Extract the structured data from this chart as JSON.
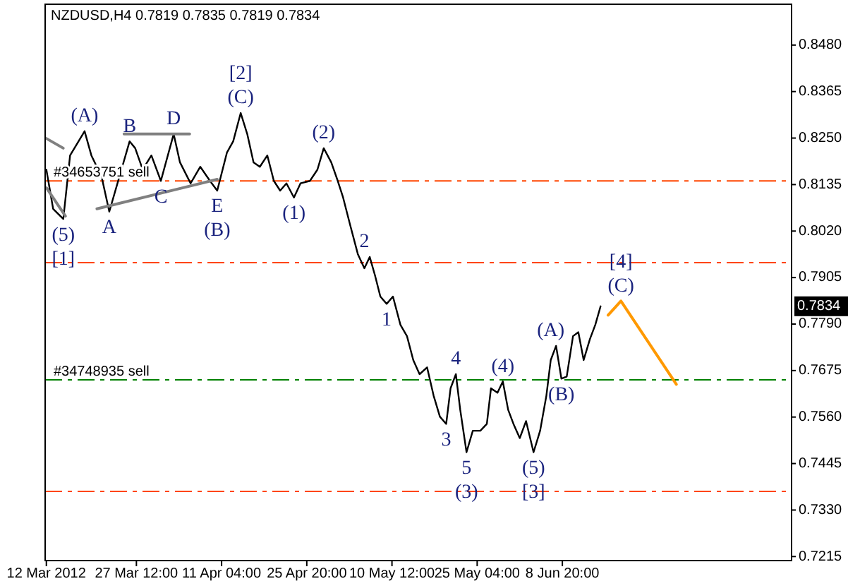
{
  "chart_data": {
    "type": "line",
    "title": "NZDUSD,H4  0.7819 0.7835 0.7819 0.7834",
    "xlim": [
      "2012-03-11T19:00",
      "2012-07-18T07:00"
    ],
    "ylim": [
      0.7205,
      0.8581
    ],
    "xticks": [
      {
        "value": "2012-03-12T00:00",
        "label": "12 Mar 2012"
      },
      {
        "value": "2012-03-27T12:00",
        "label": "27 Mar 12:00"
      },
      {
        "value": "2012-04-11T04:00",
        "label": "11 Apr 04:00"
      },
      {
        "value": "2012-04-25T20:00",
        "label": "25 Apr 20:00"
      },
      {
        "value": "2012-05-10T12:00",
        "label": "10 May 12:00"
      },
      {
        "value": "2012-05-25T04:00",
        "label": "25 May 04:00"
      },
      {
        "value": "2012-06-08T20:00",
        "label": "8 Jun 20:00"
      }
    ],
    "yticks": [
      {
        "value": 0.7215,
        "label": "0.7215"
      },
      {
        "value": 0.733,
        "label": "0.7330"
      },
      {
        "value": 0.7445,
        "label": "0.7445"
      },
      {
        "value": 0.756,
        "label": "0.7560"
      },
      {
        "value": 0.7675,
        "label": "0.7675"
      },
      {
        "value": 0.779,
        "label": "0.7790"
      },
      {
        "value": 0.7905,
        "label": "0.7905"
      },
      {
        "value": 0.802,
        "label": "0.8020"
      },
      {
        "value": 0.8135,
        "label": "0.8135"
      },
      {
        "value": 0.825,
        "label": "0.8250"
      },
      {
        "value": 0.8365,
        "label": "0.8365"
      },
      {
        "value": 0.848,
        "label": "0.8480"
      }
    ],
    "grid": false,
    "marker": "none",
    "series": [
      {
        "color": "#000000",
        "x": [
          "2012-03-12T00:00",
          "2012-03-13T04:00",
          "2012-03-14T22:00",
          "2012-03-16T02:00",
          "2012-03-18T14:00",
          "2012-03-19T18:00",
          "2012-03-21T12:00",
          "2012-03-22T20:00",
          "2012-03-24T14:00",
          "2012-03-26T08:00",
          "2012-03-27T07:00",
          "2012-03-28T14:00",
          "2012-03-30T02:00",
          "2012-03-31T17:00",
          "2012-04-02T22:00",
          "2012-04-04T00:00",
          "2012-04-05T20:00",
          "2012-04-07T12:00",
          "2012-04-09T04:00",
          "2012-04-10T10:00",
          "2012-04-12T02:00",
          "2012-04-13T04:00",
          "2012-04-14T11:00",
          "2012-04-15T14:00",
          "2012-04-16T16:00",
          "2012-04-17T18:00",
          "2012-04-19T01:00",
          "2012-04-20T04:00",
          "2012-04-21T06:00",
          "2012-04-22T08:00",
          "2012-04-23T15:00",
          "2012-04-24T18:00",
          "2012-04-26T09:00",
          "2012-04-27T16:00",
          "2012-04-28T18:00",
          "2012-04-30T01:00",
          "2012-05-01T04:00",
          "2012-05-02T02:00",
          "2012-05-03T08:00",
          "2012-05-04T15:00",
          "2012-05-05T18:00",
          "2012-05-06T16:00",
          "2012-05-07T14:00",
          "2012-05-08T12:00",
          "2012-05-09T14:00",
          "2012-05-10T16:00",
          "2012-05-11T23:00",
          "2012-05-13T02:00",
          "2012-05-14T04:00",
          "2012-05-15T06:00",
          "2012-05-16T13:00",
          "2012-05-17T16:00",
          "2012-05-18T18:00",
          "2012-05-19T20:00",
          "2012-05-20T14:00",
          "2012-05-21T12:00",
          "2012-05-22T06:00",
          "2012-05-23T08:00",
          "2012-05-24T10:00",
          "2012-05-25T17:00",
          "2012-05-26T20:00",
          "2012-05-27T13:00",
          "2012-05-28T16:00",
          "2012-05-29T14:00",
          "2012-05-30T12:00",
          "2012-05-31T10:00",
          "2012-06-01T12:00",
          "2012-06-02T14:00",
          "2012-06-03T21:00",
          "2012-06-05T00:00",
          "2012-06-06T02:00",
          "2012-06-06T20:00",
          "2012-06-07T18:00",
          "2012-06-08T16:00",
          "2012-06-09T14:00",
          "2012-06-10T16:00",
          "2012-06-11T14:00",
          "2012-06-12T12:00",
          "2012-06-13T14:00",
          "2012-06-14T12:00",
          "2012-06-15T10:00"
        ],
        "values": [
          0.8172,
          0.8075,
          0.805,
          0.8207,
          0.8267,
          0.8207,
          0.8155,
          0.8068,
          0.8155,
          0.8242,
          0.8225,
          0.8172,
          0.8207,
          0.8144,
          0.826,
          0.819,
          0.8138,
          0.8179,
          0.8144,
          0.812,
          0.8214,
          0.8242,
          0.8312,
          0.826,
          0.819,
          0.8179,
          0.8207,
          0.8144,
          0.812,
          0.8138,
          0.8103,
          0.8138,
          0.8144,
          0.8172,
          0.8225,
          0.819,
          0.8144,
          0.8103,
          0.8033,
          0.7963,
          0.7928,
          0.7956,
          0.791,
          0.7858,
          0.784,
          0.7858,
          0.7788,
          0.776,
          0.7701,
          0.7666,
          0.7683,
          0.7613,
          0.7561,
          0.7543,
          0.7631,
          0.7666,
          0.7578,
          0.7473,
          0.7526,
          0.7526,
          0.7543,
          0.7631,
          0.762,
          0.7648,
          0.7578,
          0.7543,
          0.7508,
          0.755,
          0.7473,
          0.7526,
          0.7613,
          0.7701,
          0.7736,
          0.7655,
          0.766,
          0.776,
          0.777,
          0.7701,
          0.7753,
          0.7788,
          0.7834
        ]
      },
      {
        "color": "#ff9900",
        "x": [
          "2012-06-16T17:00",
          "2012-06-18T22:00",
          "2012-06-28T11:00"
        ],
        "values": [
          0.7812,
          0.7847,
          0.7641
        ]
      },
      {
        "color": "#808080",
        "x": [
          "2012-03-25T09:00",
          "2012-04-05T16:00"
        ],
        "values": [
          0.826,
          0.826
        ]
      },
      {
        "color": "#808080",
        "x": [
          "2012-03-20T17:00",
          "2012-04-10T10:00"
        ],
        "values": [
          0.8075,
          0.8148
        ]
      },
      {
        "color": "#808080",
        "x": [
          "2012-03-12T00:00",
          "2012-03-14T22:00"
        ],
        "values": [
          0.8249,
          0.8225
        ]
      },
      {
        "color": "#808080",
        "x": [
          "2012-03-12T00:00",
          "2012-03-15T07:00"
        ],
        "values": [
          0.8127,
          0.8057
        ]
      }
    ],
    "ref_lines": [
      {
        "axis": "y",
        "value": 0.8144,
        "label": "#34653751 sell",
        "color": "#ff4500",
        "line_style": "dashed"
      },
      {
        "axis": "y",
        "value": 0.7942,
        "color": "#ff4500",
        "line_style": "dashed"
      },
      {
        "axis": "y",
        "value": 0.7652,
        "label": "#34748935 sell",
        "color": "#008000",
        "line_style": "dashed"
      },
      {
        "axis": "y",
        "value": 0.7376,
        "color": "#ff4500",
        "line_style": "dashed"
      }
    ],
    "annotations": [
      {
        "text": "(5)",
        "x": "2012-03-14T22:00",
        "y": 0.805
      },
      {
        "text": "[1]",
        "x": "2012-03-14T22:00",
        "y": 0.805
      },
      {
        "text": "(A)",
        "x": "2012-03-18T14:00",
        "y": 0.8267
      },
      {
        "text": "B",
        "x": "2012-03-26T08:00",
        "y": 0.8242
      },
      {
        "text": "D",
        "x": "2012-04-02T22:00",
        "y": 0.826
      },
      {
        "text": "A",
        "x": "2012-03-22T20:00",
        "y": 0.8068
      },
      {
        "text": "C",
        "x": "2012-03-31T17:00",
        "y": 0.8144
      },
      {
        "text": "E",
        "x": "2012-04-10T10:00",
        "y": 0.812
      },
      {
        "text": "(B)",
        "x": "2012-04-10T10:00",
        "y": 0.812
      },
      {
        "text": "(1)",
        "x": "2012-04-23T15:00",
        "y": 0.8103
      },
      {
        "text": "(C)",
        "x": "2012-04-14T11:00",
        "y": 0.8312
      },
      {
        "text": "[2]",
        "x": "2012-04-14T11:00",
        "y": 0.8312
      },
      {
        "text": "(2)",
        "x": "2012-04-28T18:00",
        "y": 0.8225
      },
      {
        "text": "2",
        "x": "2012-05-05T18:00",
        "y": 0.7956
      },
      {
        "text": "1",
        "x": "2012-05-09T14:00",
        "y": 0.784
      },
      {
        "text": "4",
        "x": "2012-05-21T12:00",
        "y": 0.7666
      },
      {
        "text": "3",
        "x": "2012-05-19T20:00",
        "y": 0.7543
      },
      {
        "text": "5",
        "x": "2012-05-23T08:00",
        "y": 0.7473
      },
      {
        "text": "(3)",
        "x": "2012-05-23T08:00",
        "y": 0.7473
      },
      {
        "text": "(4)",
        "x": "2012-05-29T14:00",
        "y": 0.7648
      },
      {
        "text": "(5)",
        "x": "2012-06-03T21:00",
        "y": 0.7473
      },
      {
        "text": "[3]",
        "x": "2012-06-03T21:00",
        "y": 0.7473
      },
      {
        "text": "(A)",
        "x": "2012-06-06T20:00",
        "y": 0.7736
      },
      {
        "text": "(B)",
        "x": "2012-06-08T16:00",
        "y": 0.7655
      },
      {
        "text": "(C)",
        "x": "2012-06-18T22:00",
        "y": 0.7847
      },
      {
        "text": "[4]",
        "x": "2012-06-18T22:00",
        "y": 0.7847
      },
      {
        "text": "0.7834",
        "y": 0.7834
      }
    ]
  }
}
